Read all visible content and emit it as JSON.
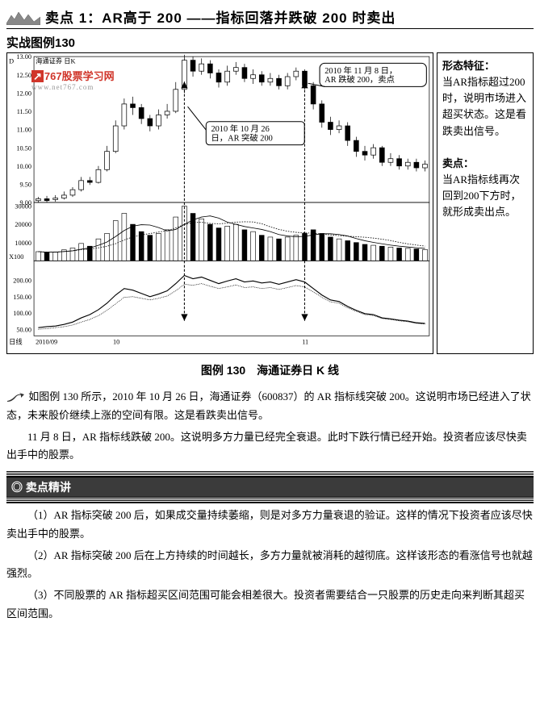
{
  "title": "卖点 1：AR高于 200 ——指标回落并跌破 200 时卖出",
  "example_label": "实战图例130",
  "watermark": {
    "cn": "767股票学习网",
    "en": "www.net767.com"
  },
  "chart": {
    "top_label": "海通证券 日K",
    "price_axis": [
      "13.00",
      "12.50",
      "12.00",
      "11.50",
      "11.00",
      "10.50",
      "10.00",
      "9.50",
      "9.00"
    ],
    "price_min": 9.0,
    "price_max": 13.0,
    "volume_axis": [
      "30000",
      "20000",
      "10000"
    ],
    "volume_label": "X100",
    "ar_axis": [
      "200.00",
      "150.00",
      "100.00",
      "50.00"
    ],
    "time_labels": [
      "2010/09",
      "10",
      "11"
    ],
    "callout1": {
      "line1": "2010 年 11 月 8 日，",
      "line2": "AR 跌破 200，卖点"
    },
    "callout2": {
      "line1": "2010 年 10 月 26",
      "line2": "日，AR 突破 200"
    },
    "colors": {
      "fg": "#000000",
      "bg": "#ffffff"
    },
    "candles": [
      {
        "o": 9.05,
        "c": 9.1,
        "h": 9.15,
        "l": 9.0
      },
      {
        "o": 9.1,
        "c": 9.05,
        "h": 9.18,
        "l": 9.0
      },
      {
        "o": 9.08,
        "c": 9.12,
        "h": 9.2,
        "l": 9.02
      },
      {
        "o": 9.12,
        "c": 9.2,
        "h": 9.3,
        "l": 9.08
      },
      {
        "o": 9.2,
        "c": 9.35,
        "h": 9.42,
        "l": 9.15
      },
      {
        "o": 9.35,
        "c": 9.6,
        "h": 9.7,
        "l": 9.3
      },
      {
        "o": 9.6,
        "c": 9.55,
        "h": 9.7,
        "l": 9.48
      },
      {
        "o": 9.55,
        "c": 9.9,
        "h": 10.0,
        "l": 9.52
      },
      {
        "o": 9.9,
        "c": 10.4,
        "h": 10.55,
        "l": 9.85
      },
      {
        "o": 10.4,
        "c": 11.1,
        "h": 11.25,
        "l": 10.35
      },
      {
        "o": 11.1,
        "c": 11.7,
        "h": 11.85,
        "l": 11.0
      },
      {
        "o": 11.7,
        "c": 11.6,
        "h": 11.9,
        "l": 11.4
      },
      {
        "o": 11.6,
        "c": 11.3,
        "h": 11.7,
        "l": 11.15
      },
      {
        "o": 11.3,
        "c": 11.1,
        "h": 11.4,
        "l": 10.95
      },
      {
        "o": 11.1,
        "c": 11.4,
        "h": 11.55,
        "l": 11.0
      },
      {
        "o": 11.4,
        "c": 11.5,
        "h": 11.7,
        "l": 11.3
      },
      {
        "o": 11.5,
        "c": 12.1,
        "h": 12.3,
        "l": 11.45
      },
      {
        "o": 12.1,
        "c": 12.9,
        "h": 13.05,
        "l": 12.0
      },
      {
        "o": 12.9,
        "c": 12.6,
        "h": 13.0,
        "l": 12.45
      },
      {
        "o": 12.6,
        "c": 12.8,
        "h": 12.95,
        "l": 12.5
      },
      {
        "o": 12.8,
        "c": 12.55,
        "h": 12.9,
        "l": 12.4
      },
      {
        "o": 12.55,
        "c": 12.3,
        "h": 12.65,
        "l": 12.15
      },
      {
        "o": 12.3,
        "c": 12.6,
        "h": 12.75,
        "l": 12.2
      },
      {
        "o": 12.6,
        "c": 12.7,
        "h": 12.85,
        "l": 12.5
      },
      {
        "o": 12.7,
        "c": 12.4,
        "h": 12.8,
        "l": 12.3
      },
      {
        "o": 12.4,
        "c": 12.5,
        "h": 12.65,
        "l": 12.25
      },
      {
        "o": 12.5,
        "c": 12.3,
        "h": 12.6,
        "l": 12.2
      },
      {
        "o": 12.3,
        "c": 12.4,
        "h": 12.55,
        "l": 12.2
      },
      {
        "o": 12.4,
        "c": 12.2,
        "h": 12.5,
        "l": 12.1
      },
      {
        "o": 12.2,
        "c": 12.45,
        "h": 12.55,
        "l": 12.1
      },
      {
        "o": 12.45,
        "c": 12.6,
        "h": 12.7,
        "l": 12.35
      },
      {
        "o": 12.6,
        "c": 12.2,
        "h": 12.65,
        "l": 12.1
      },
      {
        "o": 12.2,
        "c": 11.7,
        "h": 12.3,
        "l": 11.55
      },
      {
        "o": 11.7,
        "c": 11.2,
        "h": 11.8,
        "l": 11.05
      },
      {
        "o": 11.2,
        "c": 11.0,
        "h": 11.35,
        "l": 10.85
      },
      {
        "o": 11.0,
        "c": 11.1,
        "h": 11.25,
        "l": 10.9
      },
      {
        "o": 11.1,
        "c": 10.7,
        "h": 11.2,
        "l": 10.55
      },
      {
        "o": 10.7,
        "c": 10.4,
        "h": 10.8,
        "l": 10.25
      },
      {
        "o": 10.4,
        "c": 10.3,
        "h": 10.55,
        "l": 10.15
      },
      {
        "o": 10.3,
        "c": 10.5,
        "h": 10.6,
        "l": 10.2
      },
      {
        "o": 10.5,
        "c": 10.1,
        "h": 10.55,
        "l": 10.0
      },
      {
        "o": 10.1,
        "c": 10.2,
        "h": 10.35,
        "l": 10.0
      },
      {
        "o": 10.2,
        "c": 10.0,
        "h": 10.3,
        "l": 9.9
      },
      {
        "o": 10.0,
        "c": 10.1,
        "h": 10.2,
        "l": 9.9
      },
      {
        "o": 10.1,
        "c": 9.95,
        "h": 10.2,
        "l": 9.85
      },
      {
        "o": 9.95,
        "c": 10.05,
        "h": 10.15,
        "l": 9.85
      }
    ],
    "volumes": [
      5000,
      4500,
      4800,
      6000,
      7000,
      9500,
      8000,
      12000,
      15000,
      22000,
      26000,
      20000,
      16000,
      14000,
      15000,
      17000,
      24000,
      30000,
      26000,
      23000,
      20000,
      18000,
      19000,
      20000,
      17000,
      16000,
      14000,
      13000,
      12000,
      13000,
      14000,
      15000,
      17000,
      15000,
      13000,
      12000,
      11000,
      10000,
      9000,
      8500,
      8000,
      7500,
      7000,
      6800,
      6500,
      6200
    ],
    "ar_main": [
      55,
      58,
      60,
      65,
      72,
      85,
      95,
      110,
      130,
      155,
      175,
      170,
      160,
      150,
      158,
      168,
      190,
      215,
      205,
      210,
      200,
      190,
      198,
      205,
      195,
      198,
      192,
      195,
      188,
      195,
      202,
      195,
      175,
      155,
      140,
      135,
      120,
      108,
      98,
      95,
      85,
      82,
      78,
      75,
      70,
      68
    ],
    "ar_secondary": [
      50,
      52,
      55,
      58,
      63,
      72,
      80,
      92,
      108,
      128,
      148,
      150,
      145,
      140,
      145,
      152,
      168,
      188,
      185,
      190,
      182,
      175,
      180,
      186,
      178,
      180,
      175,
      178,
      172,
      178,
      184,
      180,
      165,
      148,
      134,
      130,
      116,
      105,
      95,
      92,
      83,
      80,
      76,
      73,
      68,
      66
    ],
    "breakout_index": 17,
    "breakdown_index": 31
  },
  "sidebar": {
    "h1": "形态特征：",
    "p1": "当AR指标超过200时，说明市场进入超买状态。这是看跌卖出信号。",
    "h2": "卖点：",
    "p2": "当AR指标线再次回到200下方时，就形成卖出点。"
  },
  "caption": "图例 130　海通证券日 K 线",
  "body_paras": [
    "如图例 130 所示，2010 年 10 月 26 日，海通证券（600837）的 AR 指标线突破 200。这说明市场已经进入了状态，未来股价继续上涨的空间有限。这是看跌卖出信号。",
    "11 月 8 日，AR 指标线跌破 200。这说明多方力量已经完全衰退。此时下跌行情已经开始。投资者应该尽快卖出手中的股票。"
  ],
  "section_title": "◎ 卖点精讲",
  "tips": [
    "（1）AR 指标突破 200 后，如果成交量持续萎缩，则是对多方力量衰退的验证。这样的情况下投资者应该尽快卖出手中的股票。",
    "（2）AR 指标突破 200 后在上方持续的时间越长，多方力量就被消耗的越彻底。这样该形态的看涨信号也就越强烈。",
    "（3）不同股票的 AR 指标超买区间范围可能会相差很大。投资者需要结合一只股票的历史走向来判断其超买区间范围。"
  ]
}
